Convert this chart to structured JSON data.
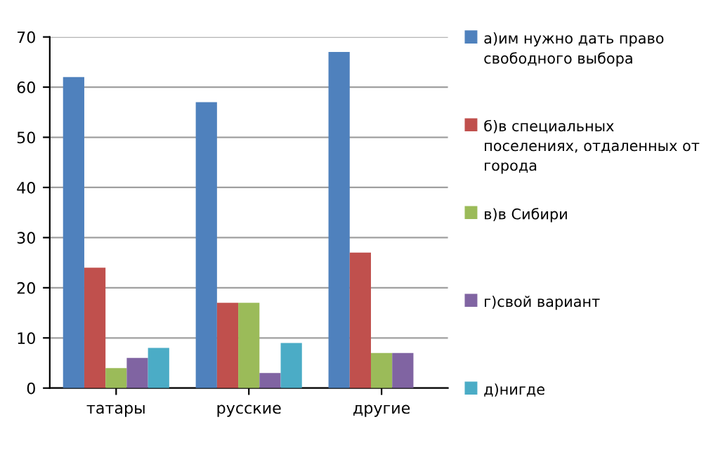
{
  "chart_data": {
    "type": "bar",
    "categories": [
      "татары",
      "русские",
      "другие"
    ],
    "series": [
      {
        "name": "а)им нужно дать право свободного выбора",
        "color": "#4f81bd",
        "values": [
          62,
          57,
          67
        ]
      },
      {
        "name": "б)в специальных поселениях, отдаленных от города",
        "color": "#c0504d",
        "values": [
          24,
          17,
          27
        ]
      },
      {
        "name": "в)в Сибири",
        "color": "#9bbb59",
        "values": [
          4,
          17,
          7
        ]
      },
      {
        "name": "г)свой вариант",
        "color": "#8064a2",
        "values": [
          6,
          3,
          7
        ]
      },
      {
        "name": "д)нигде",
        "color": "#4bacc6",
        "values": [
          8,
          9,
          0
        ]
      }
    ],
    "ylim": [
      0,
      70
    ],
    "yticks": [
      0,
      10,
      20,
      30,
      40,
      50,
      60,
      70
    ],
    "grid": "y",
    "legend": "right"
  }
}
